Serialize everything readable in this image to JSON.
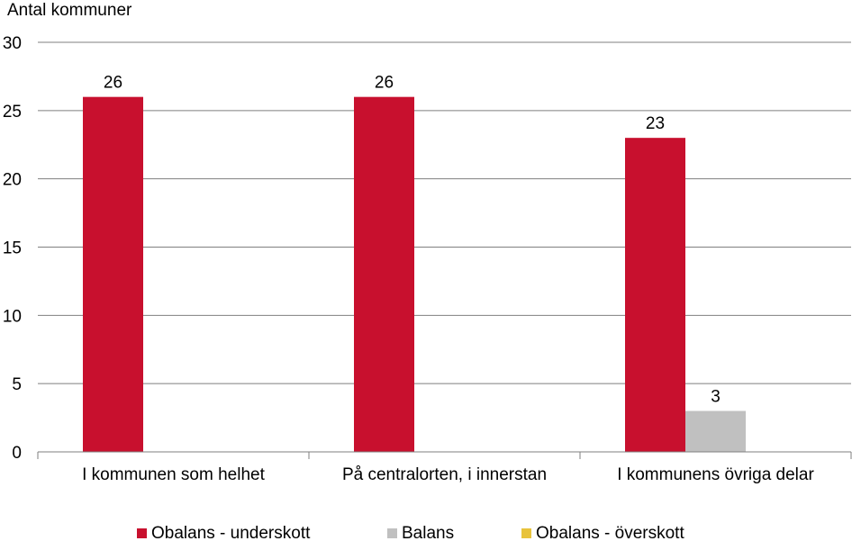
{
  "chart_data": {
    "type": "bar",
    "ylabel": "Antal kommuner",
    "xlabel": "",
    "ylim": [
      0,
      30
    ],
    "yticks": [
      0,
      5,
      10,
      15,
      20,
      25,
      30
    ],
    "grid": true,
    "legend_position": "bottom",
    "categories": [
      "I kommunen som helhet",
      "På centralorten, i innerstan",
      "I kommunens övriga delar"
    ],
    "series": [
      {
        "name": "Obalans - underskott",
        "color": "#c8102e",
        "values": [
          26,
          26,
          23
        ]
      },
      {
        "name": "Balans",
        "color": "#c0c0c0",
        "values": [
          0,
          0,
          3
        ]
      },
      {
        "name": "Obalans - överskott",
        "color": "#e8c33c",
        "values": [
          0,
          0,
          0
        ]
      }
    ]
  }
}
